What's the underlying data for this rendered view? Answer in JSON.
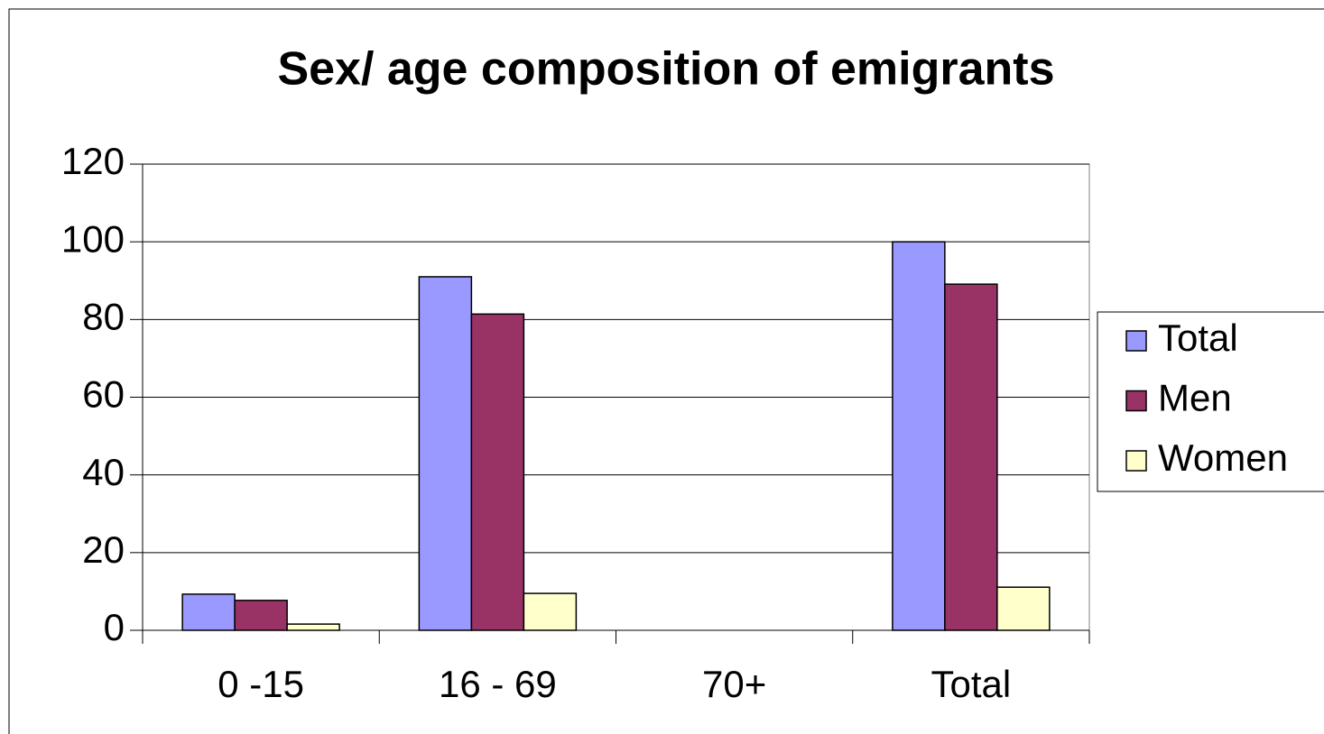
{
  "chart_data": {
    "type": "bar",
    "title": "Sex/ age composition of emigrants",
    "categories": [
      "0 -15",
      "16 - 69",
      "70+",
      "Total"
    ],
    "series": [
      {
        "name": "Total",
        "color": "#9999ff",
        "values": [
          9.3,
          91,
          0,
          100
        ]
      },
      {
        "name": "Men",
        "color": "#993366",
        "values": [
          7.7,
          81.4,
          0,
          89.1
        ]
      },
      {
        "name": "Women",
        "color": "#ffffcc",
        "values": [
          1.6,
          9.5,
          0,
          11.1
        ]
      }
    ],
    "ylim": [
      0,
      120
    ],
    "yticks": [
      0,
      20,
      40,
      60,
      80,
      100,
      120
    ],
    "grid": true,
    "legend": "right"
  }
}
